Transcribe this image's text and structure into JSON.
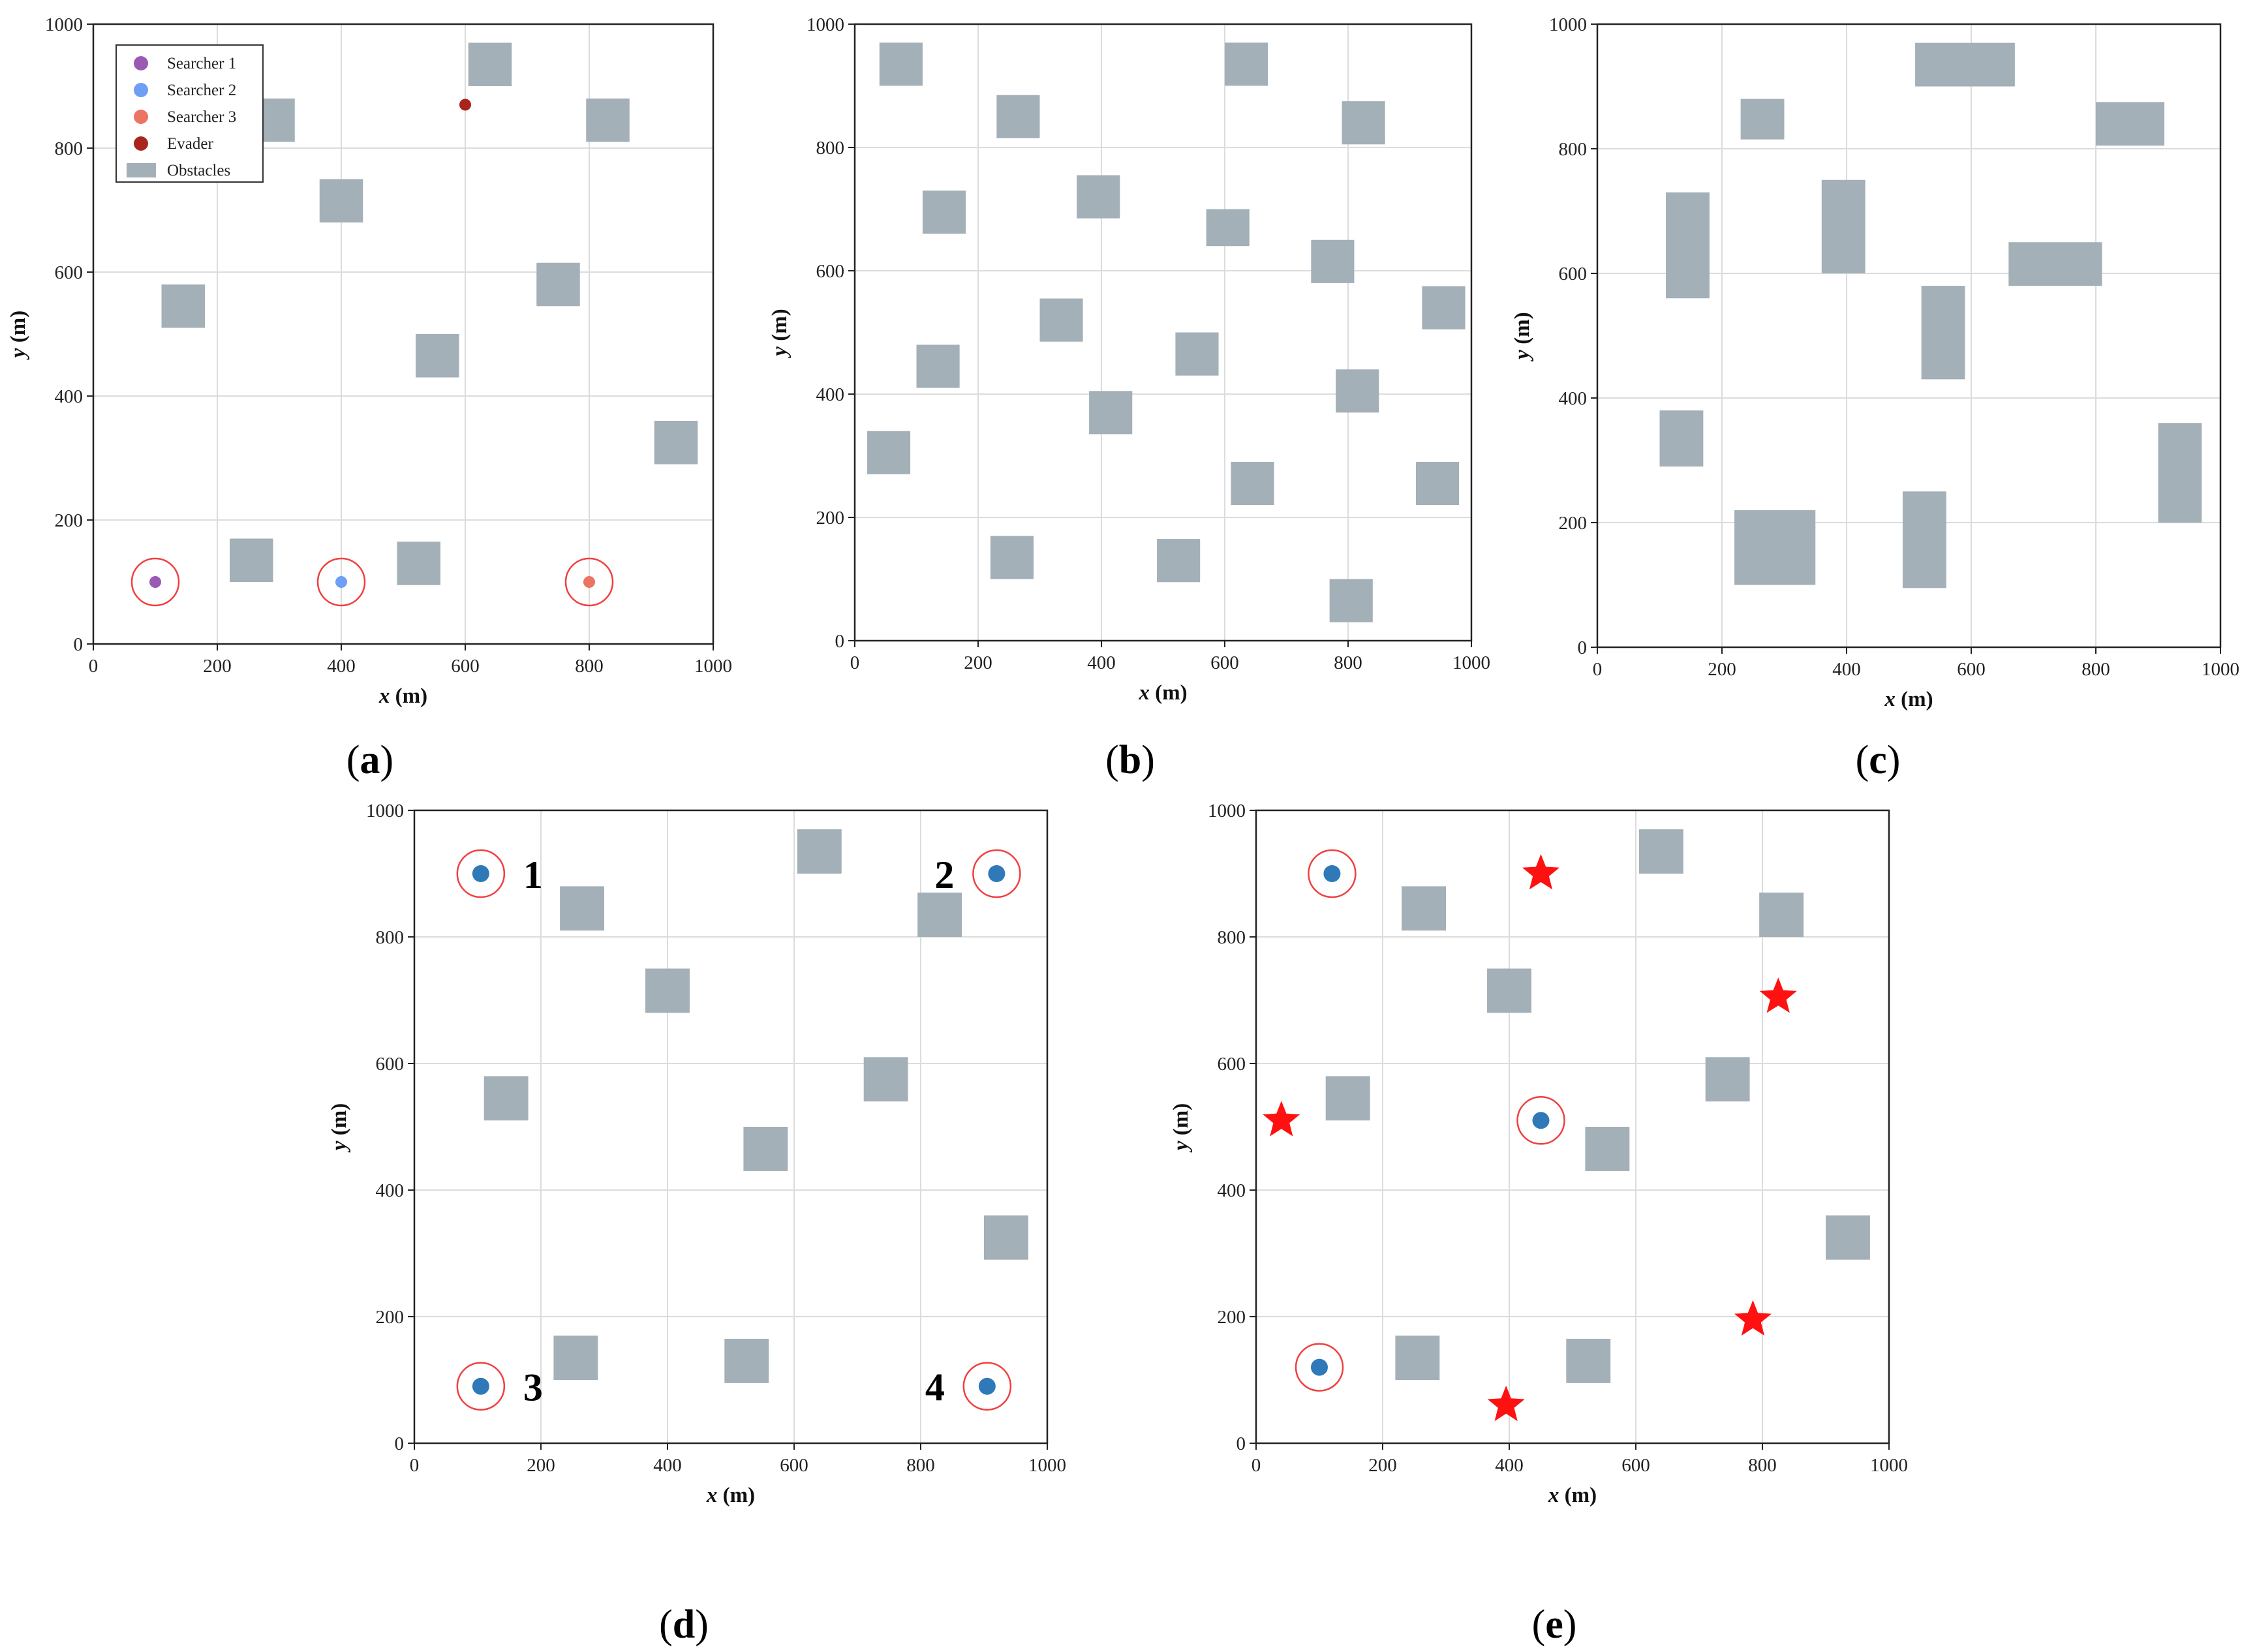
{
  "axis": {
    "xlabel_var": "x",
    "xlabel_unit": " (m)",
    "ylabel_var": "y",
    "ylabel_unit": " (m)",
    "xlim": [
      0,
      1000
    ],
    "ylim": [
      0,
      1000
    ],
    "ticks": [
      "0",
      "200",
      "400",
      "600",
      "800",
      "1000"
    ]
  },
  "colors": {
    "obstacle": "#a4b0b8",
    "grid": "#dcdcdc",
    "ring": "#f04040",
    "searcher_1": "#9b59b6",
    "searcher_2": "#6f9ef5",
    "searcher_3": "#ec7462",
    "evader": "#a8241d",
    "agent": "#2f79b9",
    "star": "#ff1111"
  },
  "legend": {
    "items": [
      {
        "label": "Searcher 1",
        "kind": "dot",
        "color": "#9b59b6"
      },
      {
        "label": "Searcher 2",
        "kind": "dot",
        "color": "#6f9ef5"
      },
      {
        "label": "Searcher 3",
        "kind": "dot",
        "color": "#ec7462"
      },
      {
        "label": "Evader",
        "kind": "dot",
        "color": "#a8241d"
      },
      {
        "label": "Obstacles",
        "kind": "rect",
        "color": "#a4b0b8"
      }
    ]
  },
  "chart_data": [
    {
      "panel": "a",
      "type": "scatter",
      "caption_letter": "a",
      "xlim": [
        0,
        1000
      ],
      "ylim": [
        0,
        1000
      ],
      "grid": true,
      "legend_position": "top-left",
      "obstacles": [
        {
          "x": 310,
          "y": 880,
          "w": 0,
          "h": 0,
          "note_hidden": true
        },
        {
          "x": 605,
          "y": 900,
          "w": 70,
          "h": 70
        },
        {
          "x": 255,
          "y": 810,
          "w": 70,
          "h": 70
        },
        {
          "x": 795,
          "y": 810,
          "w": 70,
          "h": 70
        },
        {
          "x": 365,
          "y": 680,
          "w": 70,
          "h": 70
        },
        {
          "x": 715,
          "y": 545,
          "w": 70,
          "h": 70
        },
        {
          "x": 110,
          "y": 510,
          "w": 70,
          "h": 70
        },
        {
          "x": 520,
          "y": 430,
          "w": 70,
          "h": 70
        },
        {
          "x": 905,
          "y": 290,
          "w": 70,
          "h": 70
        },
        {
          "x": 220,
          "y": 100,
          "w": 70,
          "h": 70
        },
        {
          "x": 490,
          "y": 95,
          "w": 70,
          "h": 70
        }
      ],
      "searchers": [
        {
          "name": "Searcher 1",
          "x": 100,
          "y": 100,
          "ring": true
        },
        {
          "name": "Searcher 2",
          "x": 400,
          "y": 100,
          "ring": true
        },
        {
          "name": "Searcher 3",
          "x": 800,
          "y": 100,
          "ring": true
        }
      ],
      "evader": {
        "name": "Evader",
        "x": 600,
        "y": 870
      }
    },
    {
      "panel": "b",
      "type": "scatter",
      "caption_letter": "b",
      "xlim": [
        0,
        1000
      ],
      "ylim": [
        0,
        1000
      ],
      "grid": true,
      "obstacles": [
        {
          "x": 40,
          "y": 900,
          "w": 70,
          "h": 70
        },
        {
          "x": 600,
          "y": 900,
          "w": 70,
          "h": 70
        },
        {
          "x": 230,
          "y": 815,
          "w": 70,
          "h": 70
        },
        {
          "x": 790,
          "y": 805,
          "w": 70,
          "h": 70
        },
        {
          "x": 110,
          "y": 660,
          "w": 70,
          "h": 70
        },
        {
          "x": 360,
          "y": 685,
          "w": 70,
          "h": 70
        },
        {
          "x": 570,
          "y": 640,
          "w": 70,
          "h": 60
        },
        {
          "x": 740,
          "y": 580,
          "w": 70,
          "h": 70
        },
        {
          "x": 300,
          "y": 485,
          "w": 70,
          "h": 70
        },
        {
          "x": 920,
          "y": 505,
          "w": 70,
          "h": 70
        },
        {
          "x": 100,
          "y": 410,
          "w": 70,
          "h": 70
        },
        {
          "x": 520,
          "y": 430,
          "w": 70,
          "h": 70
        },
        {
          "x": 380,
          "y": 335,
          "w": 70,
          "h": 70
        },
        {
          "x": 780,
          "y": 370,
          "w": 70,
          "h": 70
        },
        {
          "x": 20,
          "y": 270,
          "w": 70,
          "h": 70
        },
        {
          "x": 610,
          "y": 220,
          "w": 70,
          "h": 70
        },
        {
          "x": 910,
          "y": 220,
          "w": 70,
          "h": 70
        },
        {
          "x": 220,
          "y": 100,
          "w": 70,
          "h": 70
        },
        {
          "x": 490,
          "y": 95,
          "w": 70,
          "h": 70
        },
        {
          "x": 770,
          "y": 30,
          "w": 70,
          "h": 70
        }
      ]
    },
    {
      "panel": "c",
      "type": "scatter",
      "caption_letter": "c",
      "xlim": [
        0,
        1000
      ],
      "ylim": [
        0,
        1000
      ],
      "grid": true,
      "obstacles": [
        {
          "x": 510,
          "y": 900,
          "w": 160,
          "h": 70
        },
        {
          "x": 230,
          "y": 815,
          "w": 70,
          "h": 65
        },
        {
          "x": 800,
          "y": 805,
          "w": 110,
          "h": 70
        },
        {
          "x": 110,
          "y": 560,
          "w": 70,
          "h": 170
        },
        {
          "x": 360,
          "y": 600,
          "w": 70,
          "h": 150
        },
        {
          "x": 660,
          "y": 580,
          "w": 150,
          "h": 70
        },
        {
          "x": 520,
          "y": 430,
          "w": 70,
          "h": 150
        },
        {
          "x": 100,
          "y": 290,
          "w": 70,
          "h": 90
        },
        {
          "x": 900,
          "y": 200,
          "w": 70,
          "h": 160
        },
        {
          "x": 220,
          "y": 100,
          "w": 130,
          "h": 120
        },
        {
          "x": 490,
          "y": 95,
          "w": 70,
          "h": 155
        }
      ]
    },
    {
      "panel": "d",
      "type": "scatter",
      "caption_letter": "d",
      "xlim": [
        0,
        1000
      ],
      "ylim": [
        0,
        1000
      ],
      "grid": true,
      "obstacles": [
        {
          "x": 605,
          "y": 900,
          "w": 70,
          "h": 70
        },
        {
          "x": 230,
          "y": 810,
          "w": 70,
          "h": 70
        },
        {
          "x": 795,
          "y": 800,
          "w": 70,
          "h": 70
        },
        {
          "x": 365,
          "y": 680,
          "w": 70,
          "h": 70
        },
        {
          "x": 710,
          "y": 540,
          "w": 70,
          "h": 70
        },
        {
          "x": 110,
          "y": 510,
          "w": 70,
          "h": 70
        },
        {
          "x": 520,
          "y": 430,
          "w": 70,
          "h": 70
        },
        {
          "x": 900,
          "y": 290,
          "w": 70,
          "h": 70
        },
        {
          "x": 220,
          "y": 100,
          "w": 70,
          "h": 70
        },
        {
          "x": 490,
          "y": 95,
          "w": 70,
          "h": 70
        }
      ],
      "agents": [
        {
          "x": 105,
          "y": 900,
          "label": "1",
          "label_side": "right"
        },
        {
          "x": 920,
          "y": 900,
          "label": "2",
          "label_side": "left"
        },
        {
          "x": 105,
          "y": 90,
          "label": "3",
          "label_side": "right"
        },
        {
          "x": 905,
          "y": 90,
          "label": "4",
          "label_side": "left"
        }
      ]
    },
    {
      "panel": "e",
      "type": "scatter",
      "caption_letter": "e",
      "xlim": [
        0,
        1000
      ],
      "ylim": [
        0,
        1000
      ],
      "grid": true,
      "obstacles": [
        {
          "x": 605,
          "y": 900,
          "w": 70,
          "h": 70
        },
        {
          "x": 230,
          "y": 810,
          "w": 70,
          "h": 70
        },
        {
          "x": 795,
          "y": 800,
          "w": 70,
          "h": 70
        },
        {
          "x": 365,
          "y": 680,
          "w": 70,
          "h": 70
        },
        {
          "x": 710,
          "y": 540,
          "w": 70,
          "h": 70
        },
        {
          "x": 110,
          "y": 510,
          "w": 70,
          "h": 70
        },
        {
          "x": 520,
          "y": 430,
          "w": 70,
          "h": 70
        },
        {
          "x": 900,
          "y": 290,
          "w": 70,
          "h": 70
        },
        {
          "x": 220,
          "y": 100,
          "w": 70,
          "h": 70
        },
        {
          "x": 490,
          "y": 95,
          "w": 70,
          "h": 70
        }
      ],
      "agents": [
        {
          "x": 120,
          "y": 900
        },
        {
          "x": 450,
          "y": 510
        },
        {
          "x": 100,
          "y": 120
        }
      ],
      "stars": [
        {
          "x": 450,
          "y": 900
        },
        {
          "x": 825,
          "y": 705
        },
        {
          "x": 40,
          "y": 510
        },
        {
          "x": 785,
          "y": 195
        },
        {
          "x": 395,
          "y": 60
        }
      ]
    }
  ]
}
